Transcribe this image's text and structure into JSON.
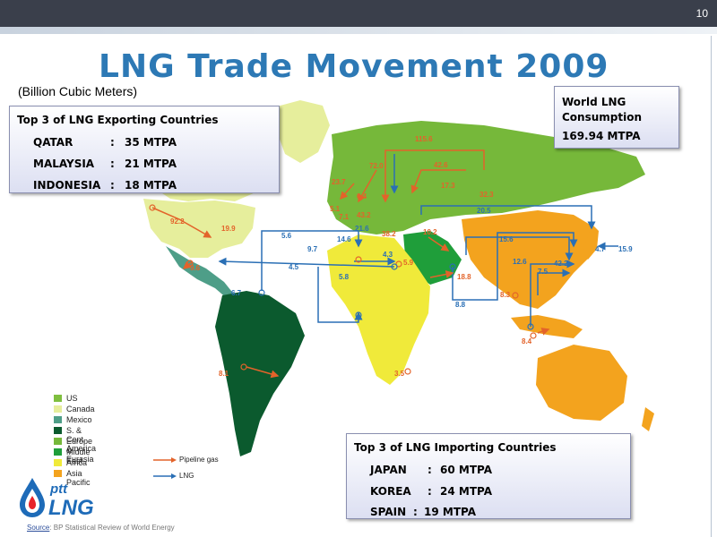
{
  "slide": {
    "number": "10",
    "title": "LNG Trade Movement 2009",
    "subtitle": "(Billion Cubic Meters)"
  },
  "exporting": {
    "heading": "Top 3 of LNG Exporting Countries",
    "rows": [
      {
        "country": "QATAR",
        "sep": ":",
        "value": "35 MTPA"
      },
      {
        "country": "MALAYSIA",
        "sep": ":",
        "value": "21 MTPA"
      },
      {
        "country": "INDONESIA",
        "sep": ":",
        "value": "18 MTPA"
      }
    ]
  },
  "consumption": {
    "heading_line1": "World LNG",
    "heading_line2": "Consumption",
    "value": "169.94 MTPA"
  },
  "importing": {
    "heading": "Top 3 of LNG Importing Countries",
    "rows": [
      {
        "country": "JAPAN",
        "sep": ":",
        "value": "60 MTPA"
      },
      {
        "country": "KOREA",
        "sep": ":",
        "value": "24 MTPA"
      },
      {
        "country": "SPAIN",
        "sep": ":",
        "value": "19 MTPA"
      }
    ]
  },
  "flow_labels": {
    "l1": "115.6",
    "l2": "72.0",
    "l3": "42.6",
    "l4": "23.7",
    "l5": "6.4",
    "l6": "5.1",
    "l7": "7.1",
    "l8": "43.2",
    "l9": "17.3",
    "l10": "32.3",
    "l11": "20.5",
    "l12": "21.6",
    "l13": "14.6",
    "l14": "10.2",
    "l15": "38.2",
    "l16": "5.6",
    "l17": "9.7",
    "l18": "4.3",
    "l19": "5.9",
    "l20": "4.5",
    "l21": "5.8",
    "l22": "92.2",
    "l23": "19.9",
    "l24": "9.6",
    "l25": "6.7",
    "l26": "18.8",
    "l27": "8.8",
    "l28": "15.6",
    "l29": "12.6",
    "l30": "7.5",
    "l31": "42.2",
    "l32": "4.7",
    "l33": "15.9",
    "l34": "8.3",
    "l35": "8.4",
    "l36": "3.5",
    "l37": "8.1"
  },
  "legend": {
    "items": [
      {
        "label": "US",
        "color": "#7fbf3f"
      },
      {
        "label": "Canada",
        "color": "#e6ee9c"
      },
      {
        "label": "Mexico",
        "color": "#4e9e88"
      },
      {
        "label": "S. & Cent. America",
        "color": "#0b5a2e"
      },
      {
        "label": "Europe & Eurasia",
        "color": "#76b83a"
      },
      {
        "label": "Middle East",
        "color": "#1f9e3a"
      },
      {
        "label": "Africa",
        "color": "#f0ea3a"
      },
      {
        "label": "Asia Pacific",
        "color": "#f3a31e"
      }
    ],
    "pipeline_label": "Pipeline gas",
    "lng_label": "LNG",
    "pipeline_color": "#e3632a",
    "lng_color": "#2a6fb5"
  },
  "logo": {
    "text_top": "ptt",
    "text_bottom": "LNG"
  },
  "source": {
    "label": "Source",
    "text": ": BP Statistical Review of World Energy"
  }
}
